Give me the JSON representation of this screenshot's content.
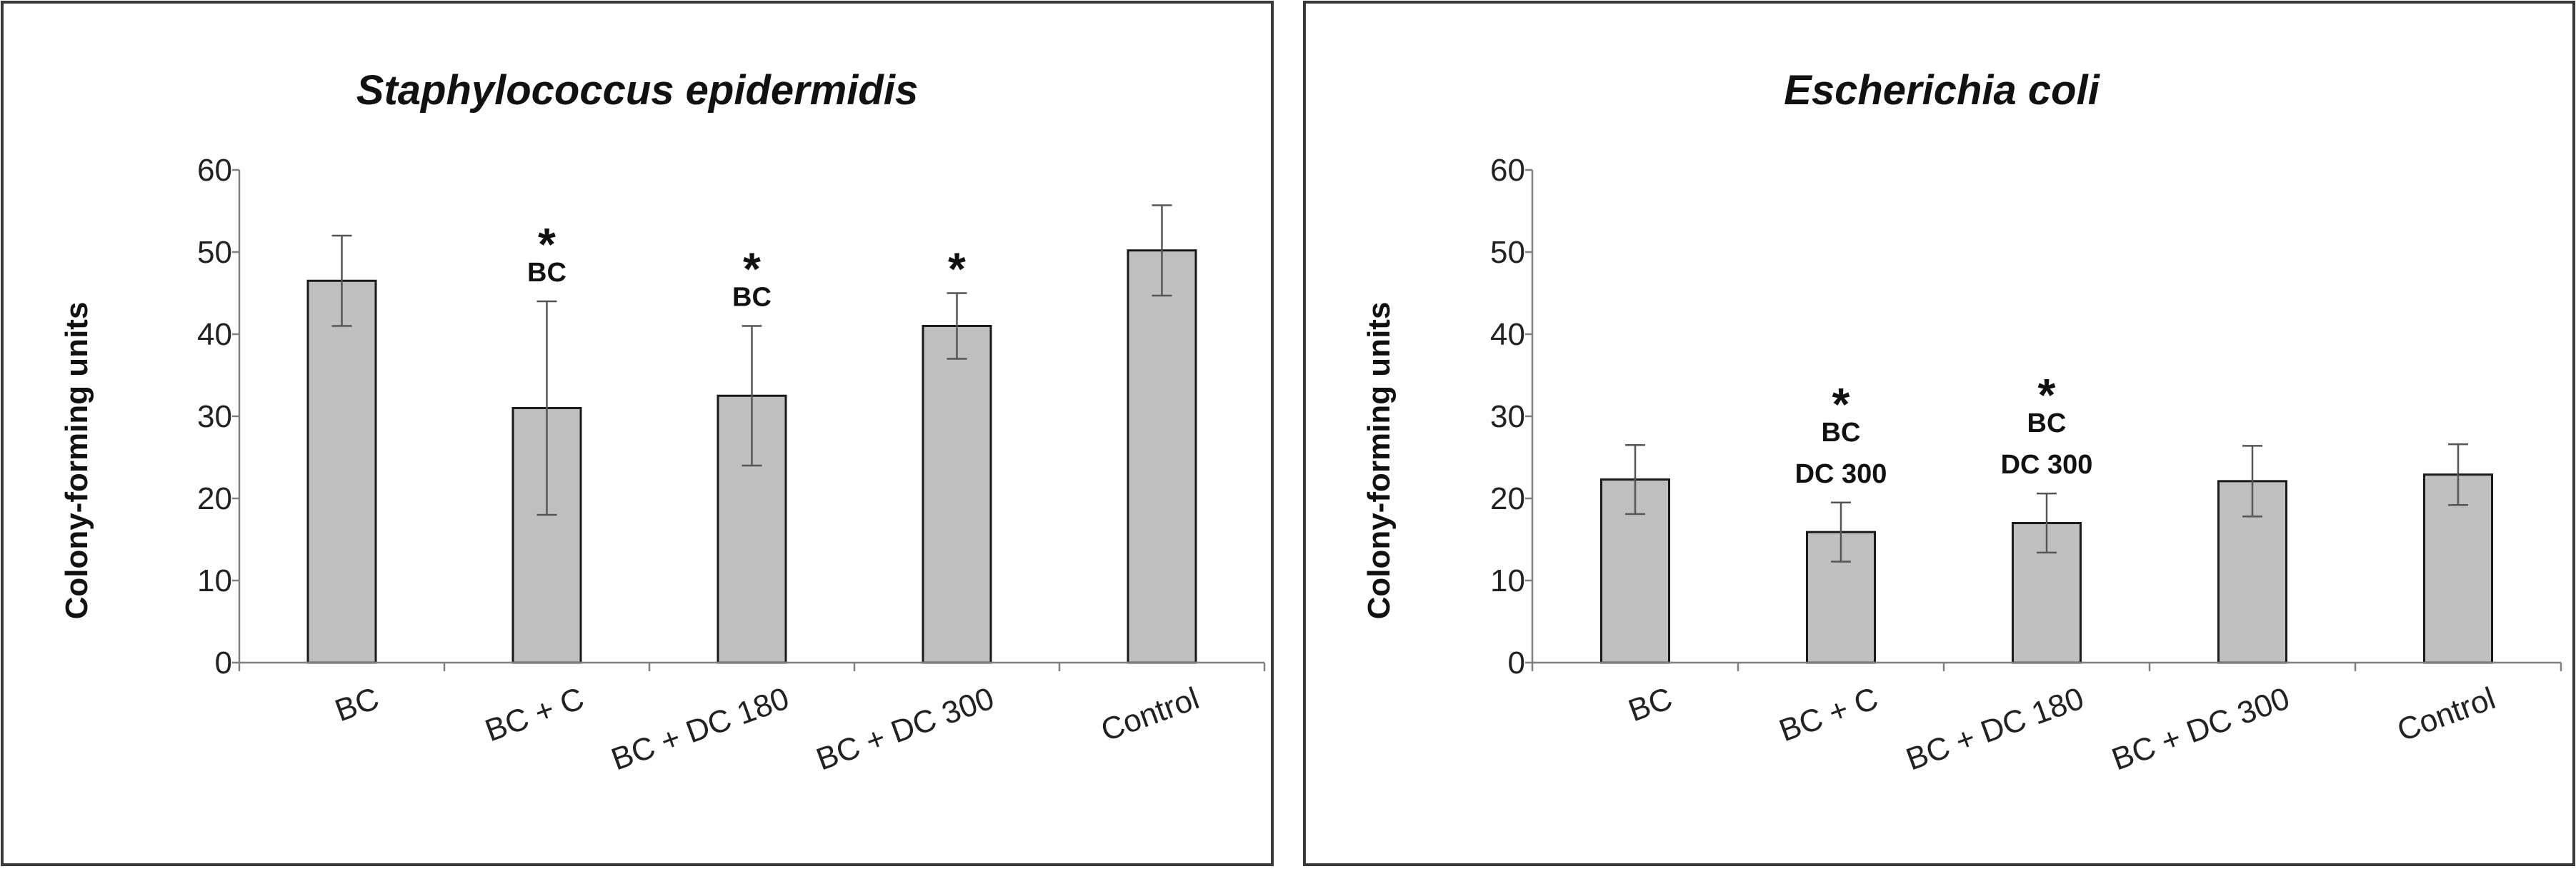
{
  "chart_data": [
    {
      "type": "bar",
      "title": "Staphylococcus epidermidis",
      "xlabel": "",
      "ylabel": "Colony-forming units",
      "ylim": [
        0,
        60
      ],
      "yticks": [
        0,
        10,
        20,
        30,
        40,
        50,
        60
      ],
      "categories": [
        "BC",
        "BC + C",
        "BC + DC 180",
        "BC + DC 300",
        "Control"
      ],
      "values": [
        46.5,
        31,
        32.5,
        41,
        50.2
      ],
      "errors": [
        5.5,
        13,
        8.5,
        4,
        5.5
      ],
      "annotations": [
        {
          "category": "BC + C",
          "star": "*",
          "lines": [
            "BC"
          ]
        },
        {
          "category": "BC + DC 180",
          "star": "*",
          "lines": [
            "BC"
          ]
        },
        {
          "category": "BC + DC 300",
          "star": "*",
          "lines": []
        }
      ]
    },
    {
      "type": "bar",
      "title": "Escherichia coli",
      "xlabel": "",
      "ylabel": "Colony-forming units",
      "ylim": [
        0,
        60
      ],
      "yticks": [
        0,
        10,
        20,
        30,
        40,
        50,
        60
      ],
      "categories": [
        "BC",
        "BC + C",
        "BC + DC 180",
        "BC + DC 300",
        "Control"
      ],
      "values": [
        22.3,
        15.9,
        17,
        22.1,
        22.9
      ],
      "errors": [
        4.2,
        3.6,
        3.6,
        4.3,
        3.7
      ],
      "annotations": [
        {
          "category": "BC + C",
          "star": "*",
          "lines": [
            "BC",
            "DC 300"
          ]
        },
        {
          "category": "BC + DC 180",
          "star": "*",
          "lines": [
            "BC",
            "DC 300"
          ]
        }
      ]
    }
  ]
}
